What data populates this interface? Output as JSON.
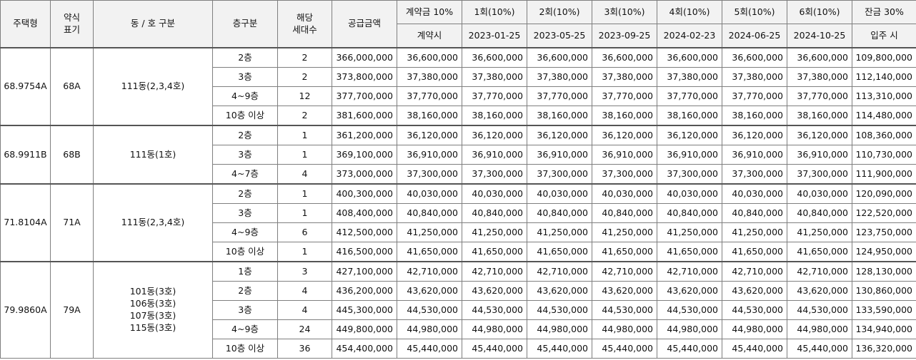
{
  "headers": {
    "type": "주택형",
    "abbr_line1": "약식",
    "abbr_line2": "표기",
    "dong": "동 / 호 구분",
    "floor": "층구분",
    "units_line1": "해당",
    "units_line2": "세대수",
    "price": "공급금액",
    "deposit": "계약금 10%",
    "i1": "1회(10%)",
    "i2": "2회(10%)",
    "i3": "3회(10%)",
    "i4": "4회(10%)",
    "i5": "5회(10%)",
    "i6": "6회(10%)",
    "balance": "잔금 30%",
    "deposit_when": "계약시",
    "d1": "2023-01-25",
    "d2": "2023-05-25",
    "d3": "2023-09-25",
    "d4": "2024-02-23",
    "d5": "2024-06-25",
    "d6": "2024-10-25",
    "balance_when": "입주 시"
  },
  "groups": [
    {
      "type": "68.9754A",
      "abbr": "68A",
      "dong": [
        "111동(2,3,4호)"
      ],
      "rows": [
        {
          "floor": "2층",
          "units": "2",
          "price": "366,000,000",
          "pay": "36,600,000",
          "balance": "109,800,000"
        },
        {
          "floor": "3층",
          "units": "2",
          "price": "373,800,000",
          "pay": "37,380,000",
          "balance": "112,140,000"
        },
        {
          "floor": "4~9층",
          "units": "12",
          "price": "377,700,000",
          "pay": "37,770,000",
          "balance": "113,310,000"
        },
        {
          "floor": "10층 이상",
          "units": "2",
          "price": "381,600,000",
          "pay": "38,160,000",
          "balance": "114,480,000"
        }
      ]
    },
    {
      "type": "68.9911B",
      "abbr": "68B",
      "dong": [
        "111동(1호)"
      ],
      "rows": [
        {
          "floor": "2층",
          "units": "1",
          "price": "361,200,000",
          "pay": "36,120,000",
          "balance": "108,360,000"
        },
        {
          "floor": "3층",
          "units": "1",
          "price": "369,100,000",
          "pay": "36,910,000",
          "balance": "110,730,000"
        },
        {
          "floor": "4~7층",
          "units": "4",
          "price": "373,000,000",
          "pay": "37,300,000",
          "balance": "111,900,000"
        }
      ]
    },
    {
      "type": "71.8104A",
      "abbr": "71A",
      "dong": [
        "111동(2,3,4호)"
      ],
      "rows": [
        {
          "floor": "2층",
          "units": "1",
          "price": "400,300,000",
          "pay": "40,030,000",
          "balance": "120,090,000"
        },
        {
          "floor": "3층",
          "units": "1",
          "price": "408,400,000",
          "pay": "40,840,000",
          "balance": "122,520,000"
        },
        {
          "floor": "4~9층",
          "units": "6",
          "price": "412,500,000",
          "pay": "41,250,000",
          "balance": "123,750,000"
        },
        {
          "floor": "10층 이상",
          "units": "1",
          "price": "416,500,000",
          "pay": "41,650,000",
          "balance": "124,950,000"
        }
      ]
    },
    {
      "type": "79.9860A",
      "abbr": "79A",
      "dong": [
        "101동(3호)",
        "106동(3호)",
        "107동(3호)",
        "115동(3호)"
      ],
      "rows": [
        {
          "floor": "1층",
          "units": "3",
          "price": "427,100,000",
          "pay": "42,710,000",
          "balance": "128,130,000"
        },
        {
          "floor": "2층",
          "units": "4",
          "price": "436,200,000",
          "pay": "43,620,000",
          "balance": "130,860,000"
        },
        {
          "floor": "3층",
          "units": "4",
          "price": "445,300,000",
          "pay": "44,530,000",
          "balance": "133,590,000"
        },
        {
          "floor": "4~9층",
          "units": "24",
          "price": "449,800,000",
          "pay": "44,980,000",
          "balance": "134,940,000"
        },
        {
          "floor": "10층 이상",
          "units": "36",
          "price": "454,400,000",
          "pay": "45,440,000",
          "balance": "136,320,000"
        }
      ]
    }
  ]
}
